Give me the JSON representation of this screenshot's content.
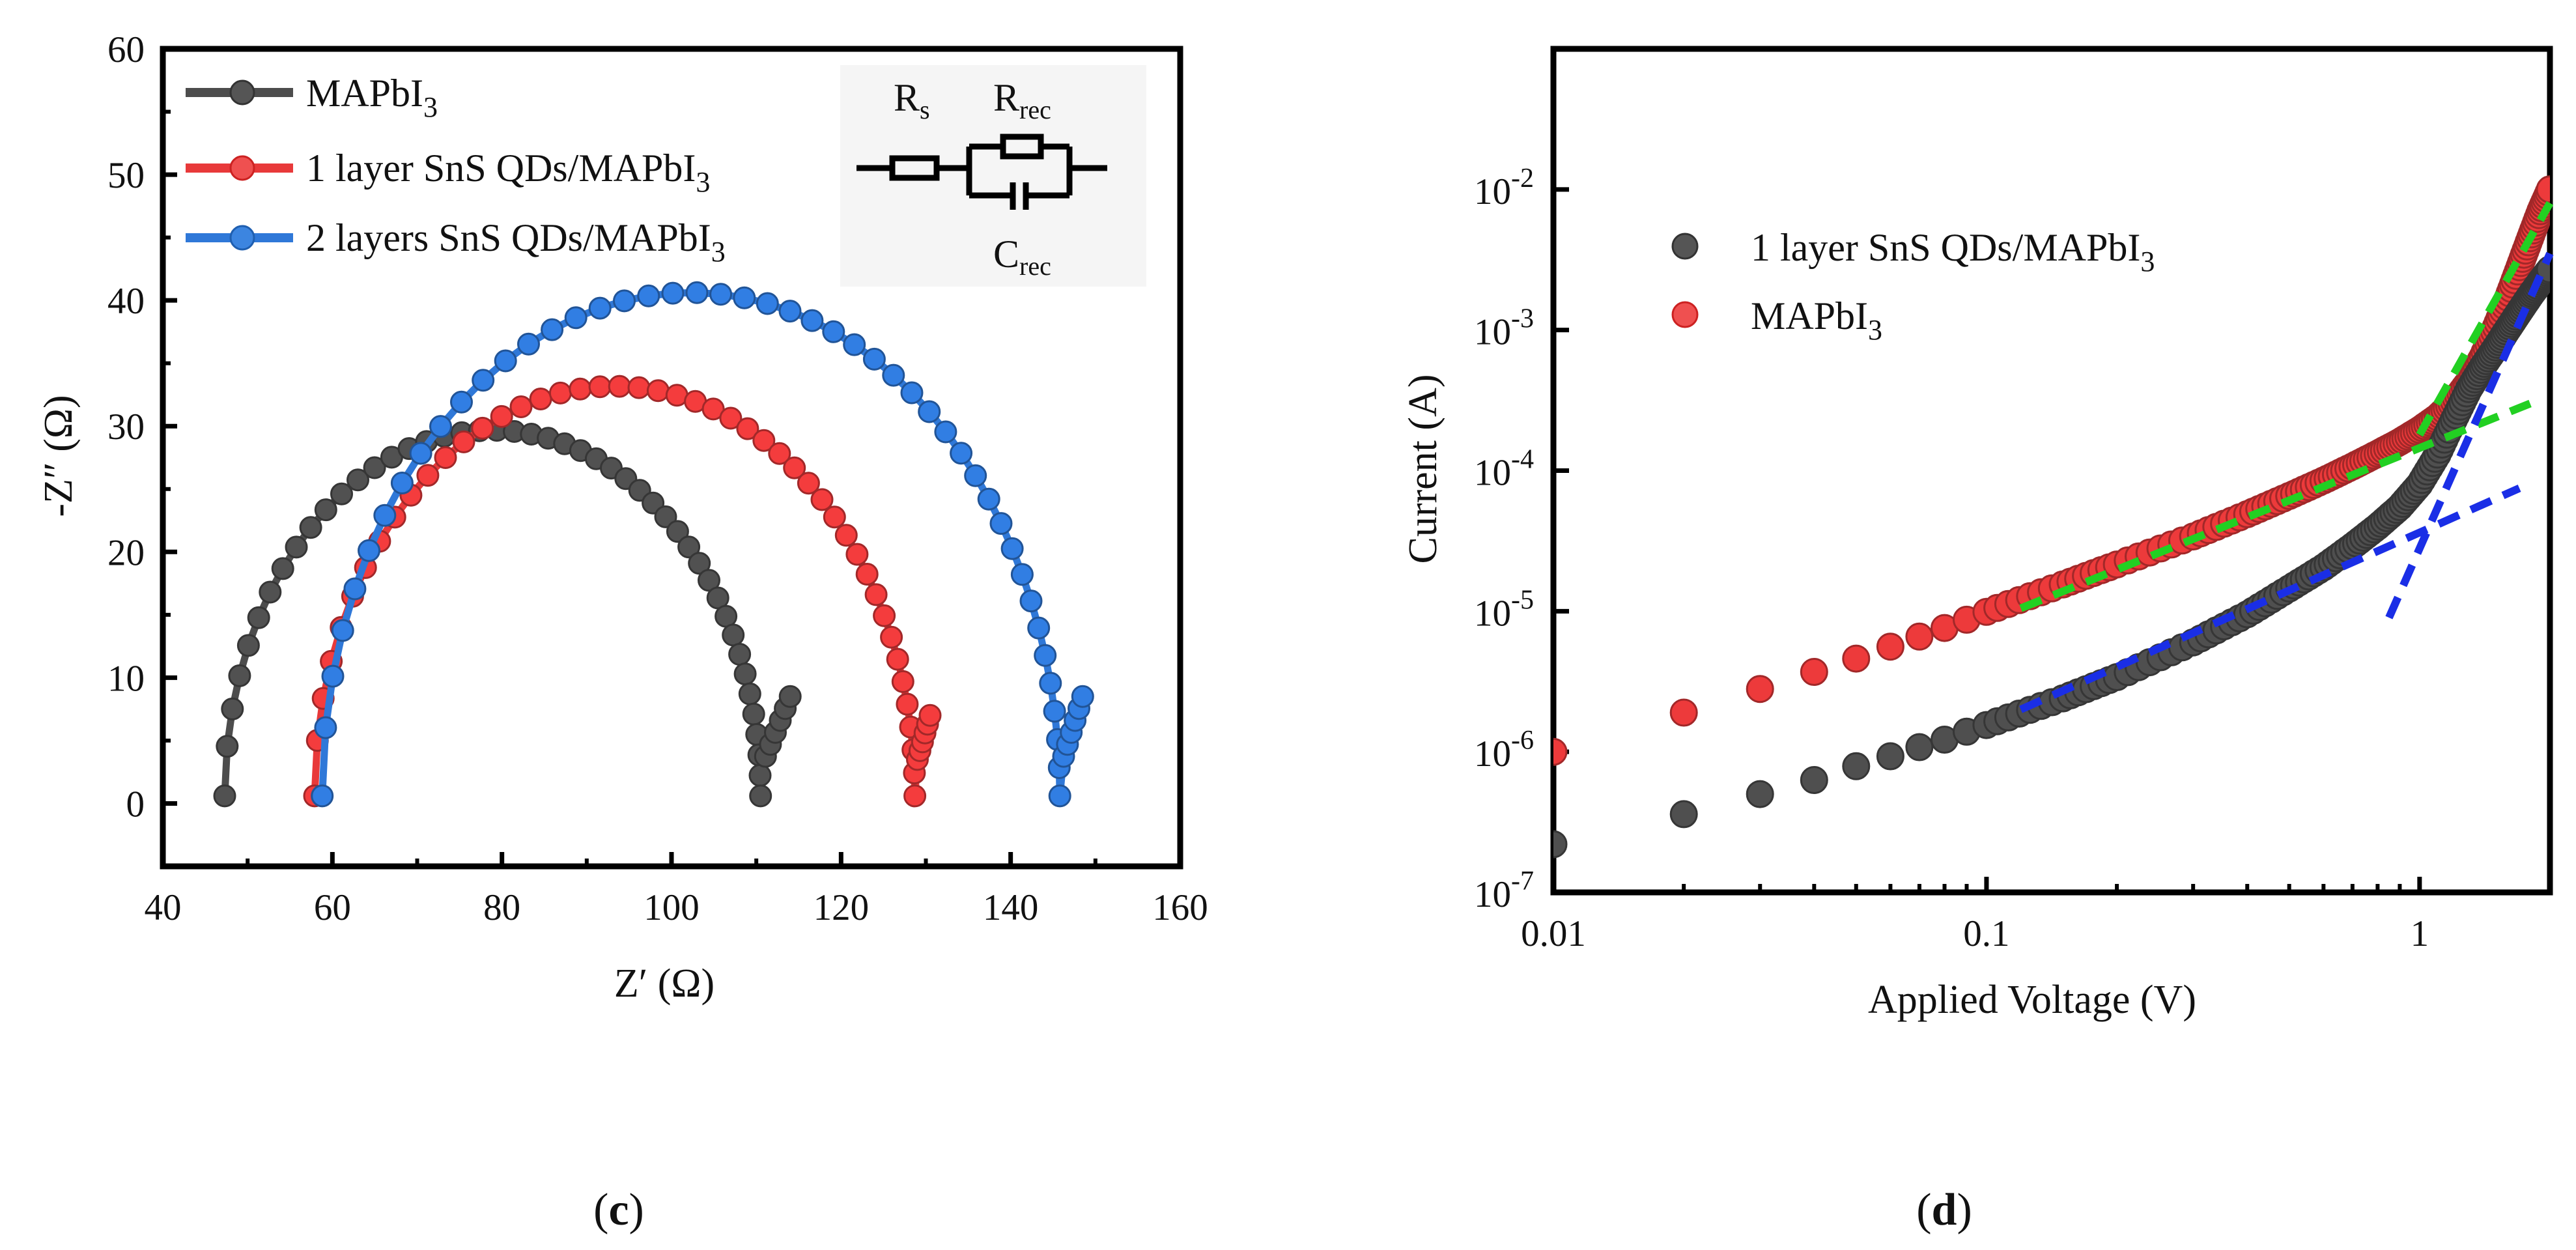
{
  "colors": {
    "black": "#4d4d4d",
    "red": "#e8393a",
    "blue": "#2f78d8",
    "green": "#22d022",
    "fitblue": "#1a2ee6"
  },
  "chart_data": [
    {
      "type": "scatter",
      "panel": "c",
      "caption": "c",
      "xlabel": "Z′ (Ω)",
      "ylabel": "-Z″ (Ω)",
      "xlim": [
        40,
        160
      ],
      "ylim": [
        -5,
        60
      ],
      "xticks": [
        "40",
        "60",
        "80",
        "100",
        "120",
        "140",
        "160"
      ],
      "yticks": [
        "0",
        "10",
        "20",
        "30",
        "40",
        "50",
        "60"
      ],
      "xtick_values": [
        40,
        60,
        80,
        100,
        120,
        140,
        160
      ],
      "ytick_values": [
        0,
        10,
        20,
        30,
        40,
        50,
        60
      ],
      "inset": {
        "rs": "Rs",
        "rrec": "Rrec",
        "crec": "Crec"
      },
      "series": [
        {
          "name": "MAPbI3",
          "legend_main": "MAPbI",
          "legend_sub": "3",
          "color": "#4d4d4d",
          "arc": {
            "x_start": 47.3,
            "x_end": 110.5,
            "tail_x": 114,
            "tail_y": 8.5
          }
        },
        {
          "name": "1 layer SnS QDs/MAPbI3",
          "legend_main": "1 layer SnS QDs/MAPbI",
          "legend_sub": "3",
          "color": "#e8393a",
          "arc": {
            "x_start": 57.9,
            "x_end": 128.7,
            "tail_x": 130.5,
            "tail_y": 7
          }
        },
        {
          "name": "2 layers SnS QDs/MAPbI3",
          "legend_main": "2 layers SnS QDs/MAPbI",
          "legend_sub": "3",
          "color": "#2f78d8",
          "arc": {
            "x_start": 58.8,
            "x_end": 145.8,
            "tail_x": 148.5,
            "tail_y": 8.5
          }
        }
      ]
    },
    {
      "type": "scatter",
      "panel": "d",
      "caption": "d",
      "xscale": "log",
      "yscale": "log",
      "xlabel": "Applied Voltage (V)",
      "ylabel": "Current (A)",
      "xlim": [
        0.01,
        2
      ],
      "ylim": [
        1e-07,
        0.1
      ],
      "xticks": [
        "0.01",
        "0.1",
        "1"
      ],
      "xtick_values": [
        0.01,
        0.1,
        1
      ],
      "ytick_exponents": [
        "-7",
        "-6",
        "-5",
        "-4",
        "-3",
        "-2"
      ],
      "ytick_base": "10",
      "series": [
        {
          "name": "1 layer SnS QDs/MAPbI3",
          "legend_main": "1 layer SnS QDs/MAPbI",
          "legend_sub": "3",
          "color": "#4d4d4d",
          "points": [
            [
              0.01,
              2.2e-07
            ],
            [
              0.02,
              3.6e-07
            ],
            [
              0.03,
              5e-07
            ],
            [
              0.04,
              6.3e-07
            ],
            [
              0.05,
              7.9e-07
            ],
            [
              0.06,
              9.3e-07
            ],
            [
              0.07,
              1.08e-06
            ],
            [
              0.08,
              1.22e-06
            ],
            [
              0.09,
              1.39e-06
            ],
            [
              0.1,
              1.55e-06
            ],
            [
              0.15,
              2.4e-06
            ],
            [
              0.2,
              3.4e-06
            ],
            [
              0.3,
              6e-06
            ],
            [
              0.4,
              9.5e-06
            ],
            [
              0.5,
              1.45e-05
            ],
            [
              0.6,
              2.05e-05
            ],
            [
              0.7,
              2.9e-05
            ],
            [
              0.8,
              4e-05
            ],
            [
              0.9,
              5.5e-05
            ],
            [
              1.0,
              8e-05
            ],
            [
              1.1,
              0.00013
            ],
            [
              1.2,
              0.00023
            ],
            [
              1.3,
              0.00038
            ],
            [
              1.4,
              0.00055
            ],
            [
              1.5,
              0.00075
            ],
            [
              1.6,
              0.00102
            ],
            [
              1.7,
              0.00135
            ],
            [
              1.8,
              0.00175
            ],
            [
              1.9,
              0.0022
            ],
            [
              2.0,
              0.0027
            ]
          ]
        },
        {
          "name": "MAPbI3",
          "legend_main": "MAPbI",
          "legend_sub": "3",
          "color": "#e8393a",
          "points": [
            [
              0.01,
              1e-06
            ],
            [
              0.02,
              1.9e-06
            ],
            [
              0.03,
              2.8e-06
            ],
            [
              0.04,
              3.7e-06
            ],
            [
              0.05,
              4.6e-06
            ],
            [
              0.06,
              5.6e-06
            ],
            [
              0.07,
              6.6e-06
            ],
            [
              0.08,
              7.6e-06
            ],
            [
              0.09,
              8.7e-06
            ],
            [
              0.1,
              9.9e-06
            ],
            [
              0.15,
              1.55e-05
            ],
            [
              0.2,
              2.15e-05
            ],
            [
              0.3,
              3.4e-05
            ],
            [
              0.4,
              4.9e-05
            ],
            [
              0.5,
              6.6e-05
            ],
            [
              0.6,
              8.5e-05
            ],
            [
              0.7,
              0.000107
            ],
            [
              0.8,
              0.000132
            ],
            [
              0.9,
              0.00016
            ],
            [
              1.0,
              0.000195
            ],
            [
              1.1,
              0.00024
            ],
            [
              1.2,
              0.00031
            ],
            [
              1.3,
              0.00043
            ],
            [
              1.4,
              0.00065
            ],
            [
              1.5,
              0.00105
            ],
            [
              1.6,
              0.0017
            ],
            [
              1.7,
              0.0028
            ],
            [
              1.8,
              0.0045
            ],
            [
              1.9,
              0.007
            ],
            [
              2.0,
              0.01
            ]
          ]
        }
      ],
      "fits": [
        {
          "color": "#22d022",
          "points": [
            [
              0.12,
              1.05e-05
            ],
            [
              1.8,
              0.0003
            ]
          ]
        },
        {
          "color": "#22d022",
          "points": [
            [
              1.0,
              0.00018
            ],
            [
              2.0,
              0.008
            ]
          ]
        },
        {
          "color": "#1a2ee6",
          "points": [
            [
              0.12,
              2e-06
            ],
            [
              1.7,
              7.5e-05
            ]
          ]
        },
        {
          "color": "#1a2ee6",
          "points": [
            [
              0.85,
              9e-06
            ],
            [
              2.0,
              0.0035
            ]
          ]
        }
      ]
    }
  ]
}
